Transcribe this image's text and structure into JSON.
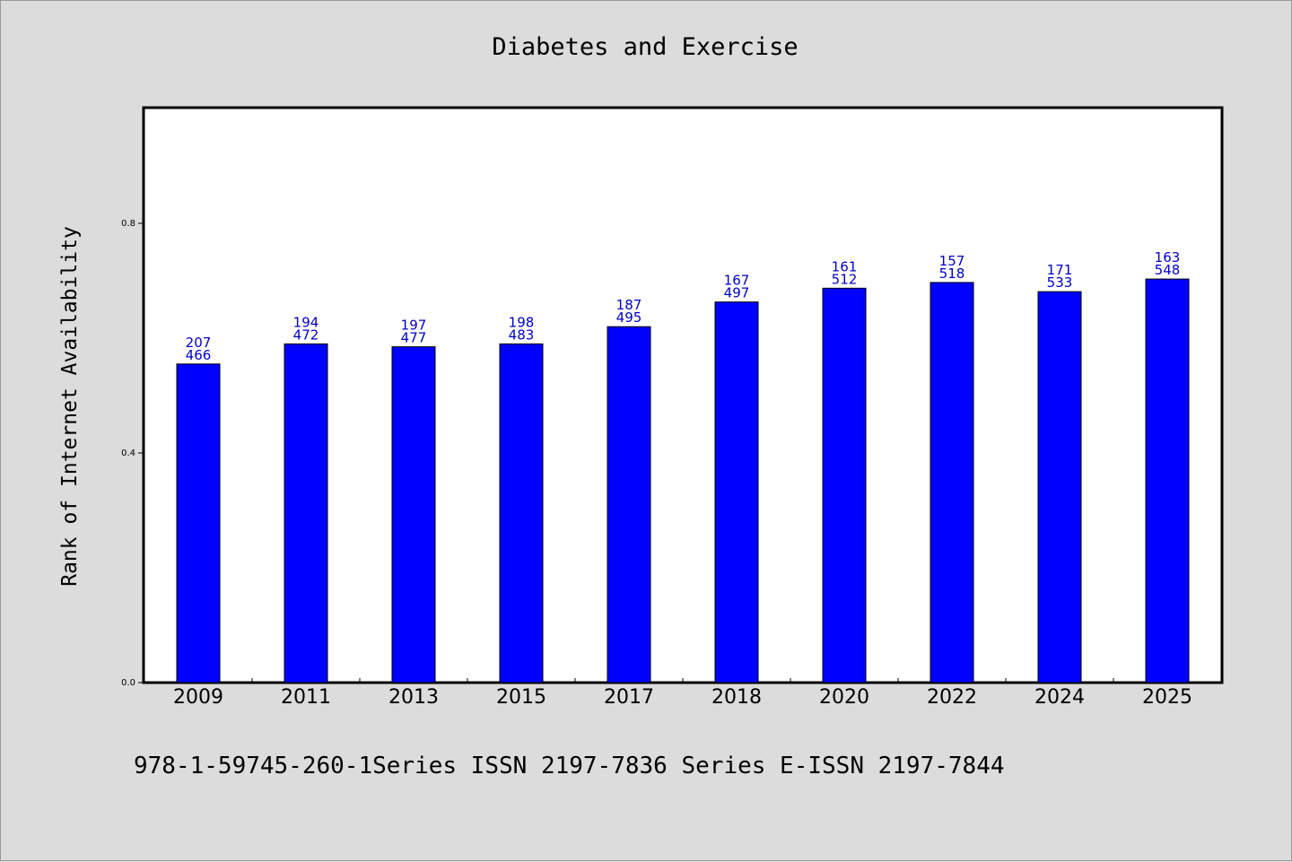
{
  "chart_data": {
    "type": "bar",
    "title": "Diabetes and Exercise",
    "xlabel": "",
    "ylabel": "Rank of Internet Availability",
    "ylim": [
      0,
      1.0
    ],
    "yticks": [
      "0.0",
      "0.4",
      "0.8"
    ],
    "categories": [
      "2009",
      "2011",
      "2013",
      "2015",
      "2017",
      "2018",
      "2020",
      "2022",
      "2024",
      "2025"
    ],
    "values": [
      0.555,
      0.59,
      0.585,
      0.59,
      0.62,
      0.663,
      0.687,
      0.697,
      0.681,
      0.703
    ],
    "labels_top": [
      "207",
      "194",
      "197",
      "198",
      "187",
      "167",
      "161",
      "157",
      "171",
      "163"
    ],
    "labels_bottom": [
      "466",
      "472",
      "477",
      "483",
      "495",
      "497",
      "512",
      "518",
      "533",
      "548"
    ],
    "bar_color": "#0000ff",
    "label_color": "#0000cc",
    "grid": false
  },
  "footer": "978-1-59745-260-1Series ISSN 2197-7836 Series E-ISSN 2197-7844"
}
